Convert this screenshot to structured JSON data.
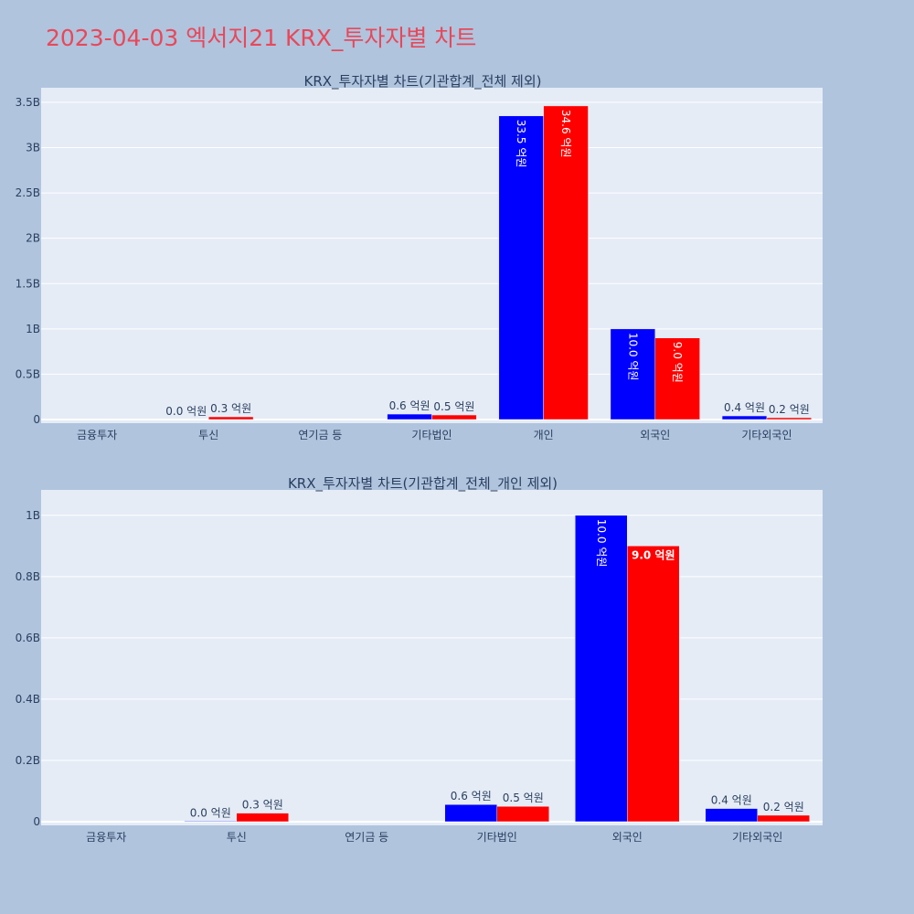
{
  "title": "2023-04-03 엑서지21 KRX_투자자별 차트",
  "colors": {
    "background": "#b0c4de",
    "plot_bg": "#e5ecf6",
    "title": "#e8485a",
    "series_buy": "#0000ff",
    "series_sell": "#ff0000"
  },
  "chart_data": [
    {
      "type": "bar",
      "title": "KRX_투자자별 차트(기관합계_전체 제외)",
      "categories": [
        "금융투자",
        "투신",
        "연기금 등",
        "기타법인",
        "개인",
        "외국인",
        "기타외국인"
      ],
      "series": [
        {
          "color": "#0000ff",
          "values": [
            0,
            0,
            0,
            0.06,
            3.35,
            1.0,
            0.04
          ],
          "labels": [
            "",
            "0.0 억원",
            "",
            "0.6 억원",
            "33.5 억원",
            "10.0 억원",
            "0.4 억원"
          ]
        },
        {
          "color": "#ff0000",
          "values": [
            0,
            0.03,
            0,
            0.05,
            3.46,
            0.9,
            0.02
          ],
          "labels": [
            "",
            "0.3 억원",
            "",
            "0.5 억원",
            "34.6 억원",
            "9.0 억원",
            "0.2 억원"
          ]
        }
      ],
      "yticks": [
        "0",
        "0.5B",
        "1B",
        "1.5B",
        "2B",
        "2.5B",
        "3B",
        "3.5B"
      ],
      "ylim": [
        0,
        3.6
      ],
      "grid": true
    },
    {
      "type": "bar",
      "title": "KRX_투자자별 차트(기관합계_전체_개인 제외)",
      "categories": [
        "금융투자",
        "투신",
        "연기금 등",
        "기타법인",
        "외국인",
        "기타외국인"
      ],
      "series": [
        {
          "color": "#0000ff",
          "values": [
            0,
            0.002,
            0,
            0.056,
            1.0,
            0.043
          ],
          "labels": [
            "",
            "0.0 억원",
            "",
            "0.6 억원",
            "10.0 억원",
            "0.4 억원"
          ]
        },
        {
          "color": "#ff0000",
          "values": [
            0,
            0.028,
            0,
            0.05,
            0.9,
            0.021
          ],
          "labels": [
            "",
            "0.3 억원",
            "",
            "0.5 억원",
            "9.0 억원",
            "0.2 억원"
          ]
        }
      ],
      "yticks": [
        "0",
        "0.2B",
        "0.4B",
        "0.6B",
        "0.8B",
        "1B"
      ],
      "ylim": [
        0,
        1.065
      ],
      "grid": true
    }
  ]
}
